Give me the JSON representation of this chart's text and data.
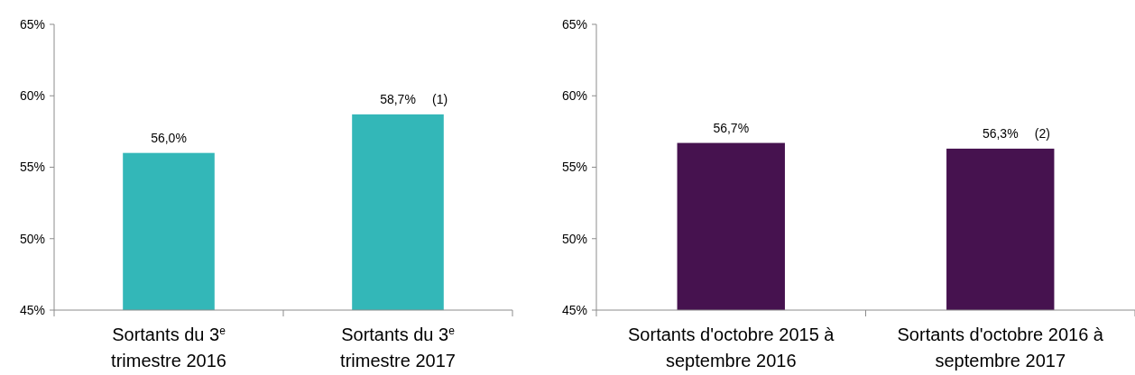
{
  "chart_data": [
    {
      "type": "bar",
      "categories": [
        "Sortants du 3$^{e}$ trimestre 2016",
        "Sortants du 3$^{e}$ trimestre 2017"
      ],
      "values": [
        56.0,
        58.7
      ],
      "value_labels": [
        "56,0%",
        "58,7%"
      ],
      "color": "#33b7b8",
      "ylim": [
        45,
        65
      ],
      "yticks": [
        {
          "value": 45,
          "label": "45%"
        },
        {
          "value": 50,
          "label": "50%"
        },
        {
          "value": 55,
          "label": "55%"
        },
        {
          "value": 60,
          "label": "60%"
        },
        {
          "value": 65,
          "label": "65%"
        }
      ],
      "annotations": [
        "(1)"
      ]
    },
    {
      "type": "bar",
      "categories": [
        "Sortants d'octobre 2015 à septembre 2016",
        "Sortants d'octobre 2016 à septembre 2017"
      ],
      "values": [
        56.7,
        56.3
      ],
      "value_labels": [
        "56,7%",
        "56,3%"
      ],
      "color": "#46124f",
      "ylim": [
        45,
        65
      ],
      "yticks": [
        {
          "value": 45,
          "label": "45%"
        },
        {
          "value": 50,
          "label": "50%"
        },
        {
          "value": 55,
          "label": "55%"
        },
        {
          "value": 60,
          "label": "60%"
        },
        {
          "value": 65,
          "label": "65%"
        }
      ],
      "annotations": [
        "(2)"
      ]
    }
  ]
}
